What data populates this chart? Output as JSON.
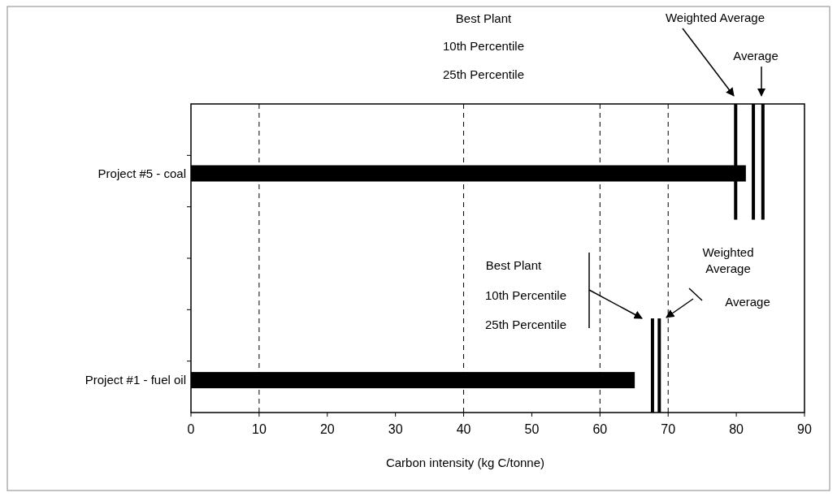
{
  "chart_data": {
    "type": "bar",
    "orientation": "horizontal",
    "xlabel": "Carbon intensity (kg C/tonne)",
    "categories": [
      "Project #5 - coal",
      "Project #1 - fuel oil"
    ],
    "values": [
      81.4,
      65.1
    ],
    "color": "#000000",
    "xlim": [
      0,
      90
    ],
    "xticks": [
      0,
      10,
      20,
      30,
      40,
      50,
      60,
      70,
      80,
      90
    ],
    "ref_lines": [
      {
        "axis": "x",
        "value": 10,
        "color": "#000000",
        "line_style": "dashed"
      },
      {
        "axis": "x",
        "value": 40,
        "color": "#000000",
        "line_style": "dashed"
      },
      {
        "axis": "x",
        "value": 60,
        "color": "#000000",
        "line_style": "dashed"
      },
      {
        "axis": "x",
        "value": 70,
        "color": "#000000",
        "line_style": "dashed"
      },
      {
        "axis": "x",
        "value": 79.9,
        "color": "#000000",
        "line_style": "solid"
      },
      {
        "axis": "x",
        "value": 82.5,
        "color": "#000000",
        "line_style": "solid"
      },
      {
        "axis": "x",
        "value": 83.9,
        "color": "#000000",
        "line_style": "solid"
      },
      {
        "axis": "x",
        "value": 67.7,
        "color": "#000000",
        "line_style": "solid"
      },
      {
        "axis": "x",
        "value": 68.7,
        "color": "#000000",
        "line_style": "solid"
      }
    ],
    "annotations": [
      "Best Plant",
      "10th Percentile",
      "25th Percentile",
      "Weighted Average",
      "Average",
      "Best Plant",
      "10th Percentile",
      "25th Percentile",
      "Weighted\nAverage",
      "Average"
    ]
  }
}
